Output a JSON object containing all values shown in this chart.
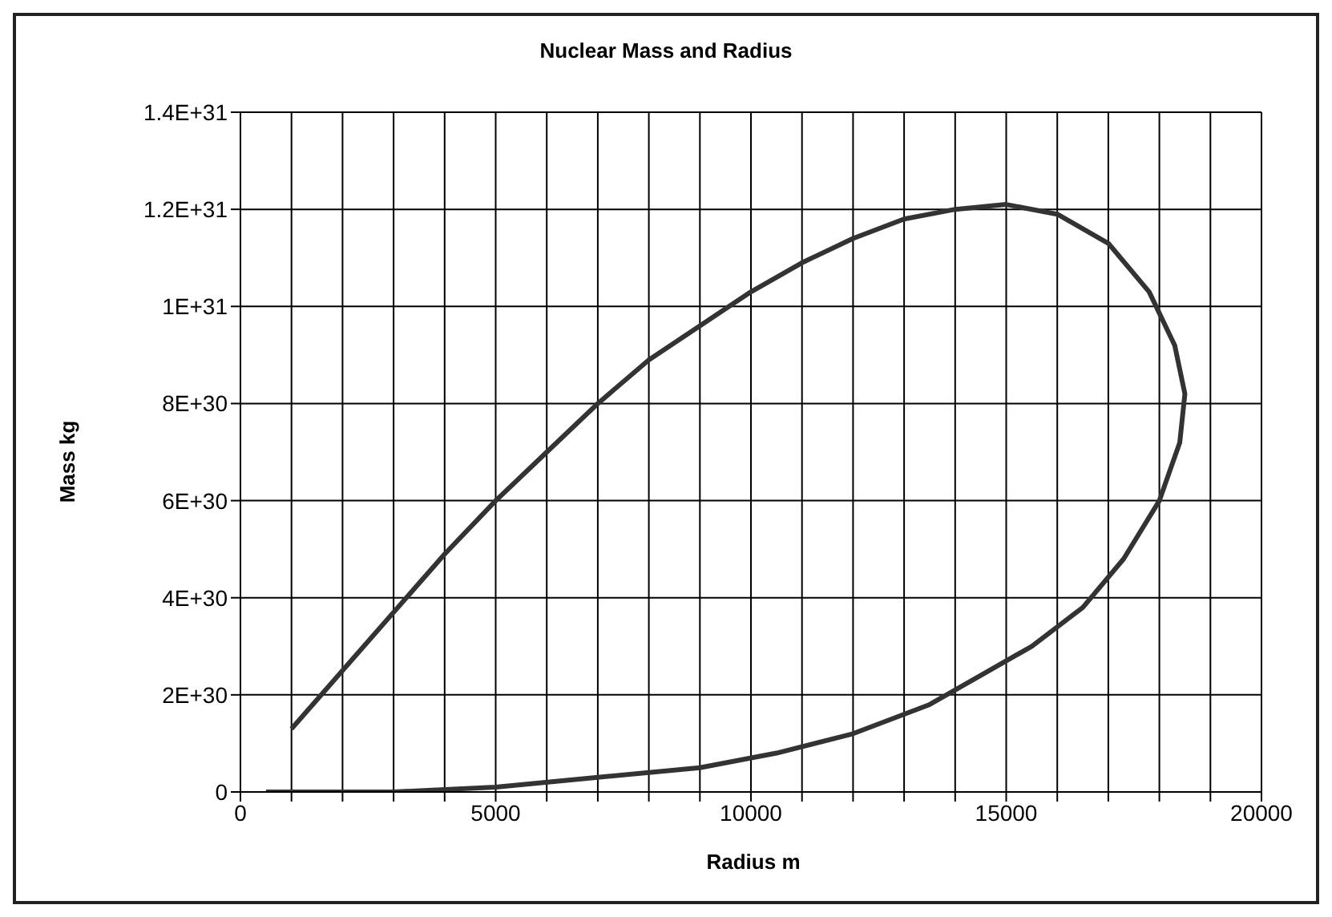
{
  "chart_data": {
    "type": "line",
    "title": "Nuclear Mass and Radius",
    "xlabel": "Radius m",
    "ylabel": "Mass kg",
    "x": [
      1000,
      2000,
      3000,
      4000,
      5000,
      6000,
      7000,
      8000,
      9000,
      10000,
      11000,
      12000,
      13000,
      14000,
      15000,
      16000,
      17000,
      17800,
      18300,
      18500,
      18400,
      18000,
      17300,
      16500,
      15500,
      14500,
      13500,
      12000,
      10500,
      9000,
      7000,
      5000,
      3000,
      500
    ],
    "series": [
      {
        "color": "#333333",
        "values": [
          1.3e+30,
          2.5e+30,
          3.7e+30,
          4.9e+30,
          6e+30,
          7e+30,
          8e+30,
          8.9e+30,
          9.6e+30,
          1.03e+31,
          1.09e+31,
          1.14e+31,
          1.18e+31,
          1.2e+31,
          1.21e+31,
          1.19e+31,
          1.13e+31,
          1.03e+31,
          9.2e+30,
          8.2e+30,
          7.2e+30,
          6e+30,
          4.8e+30,
          3.8e+30,
          3e+30,
          2.4e+30,
          1.8e+30,
          1.2e+30,
          8e+29,
          5e+29,
          3e+29,
          1e+29,
          0,
          0
        ]
      }
    ],
    "xlim": [
      0,
      20000
    ],
    "xticks": [
      0,
      {
        "value": 1000,
        "label": null
      },
      {
        "value": 2000,
        "label": null
      },
      {
        "value": 3000,
        "label": null
      },
      {
        "value": 4000,
        "label": null
      },
      5000,
      {
        "value": 6000,
        "label": null
      },
      {
        "value": 7000,
        "label": null
      },
      {
        "value": 8000,
        "label": null
      },
      {
        "value": 9000,
        "label": null
      },
      10000,
      {
        "value": 11000,
        "label": null
      },
      {
        "value": 12000,
        "label": null
      },
      {
        "value": 13000,
        "label": null
      },
      {
        "value": 14000,
        "label": null
      },
      15000,
      {
        "value": 16000,
        "label": null
      },
      {
        "value": 17000,
        "label": null
      },
      {
        "value": 18000,
        "label": null
      },
      {
        "value": 19000,
        "label": null
      },
      20000
    ],
    "ylim": [
      0,
      1.4e+31
    ],
    "yticks": [
      0,
      {
        "value": 2e+30,
        "label": "2E+30"
      },
      {
        "value": 4e+30,
        "label": "4E+30"
      },
      {
        "value": 6e+30,
        "label": "6E+30"
      },
      {
        "value": 8e+30,
        "label": "8E+30"
      },
      {
        "value": 1e+31,
        "label": "1E+31"
      },
      {
        "value": 1.2e+31,
        "label": "1.2E+31"
      },
      {
        "value": 1.4e+31,
        "label": "1.4E+31"
      }
    ],
    "grid": true,
    "marker": "none",
    "line_style": "solid",
    "legend": false
  }
}
